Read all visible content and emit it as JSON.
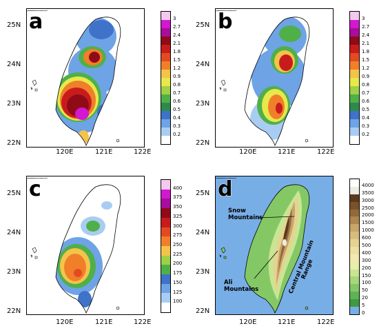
{
  "panels": [
    {
      "label": "a"
    },
    {
      "label": "b"
    },
    {
      "label": "c"
    },
    {
      "label": "d"
    }
  ],
  "latitude_ticks": [
    "25N",
    "24N",
    "23N",
    "22N"
  ],
  "longitude_ticks": [
    "120E",
    "121E",
    "122E"
  ],
  "colorbars": {
    "ratio": {
      "labels": [
        "3",
        "2.7",
        "2.4",
        "2.1",
        "1.8",
        "1.5",
        "1.2",
        "0.9",
        "0.8",
        "0.7",
        "0.6",
        "0.5",
        "0.4",
        "0.3",
        "0.2"
      ],
      "colors": [
        "#f3c9ee",
        "#d218d0",
        "#a80d9c",
        "#8f0b18",
        "#c81c1c",
        "#e34a22",
        "#f07f2a",
        "#f4c34a",
        "#e7e84a",
        "#9fd046",
        "#4fb04a",
        "#2f8a4a",
        "#3f73c9",
        "#6ea3e6",
        "#a9cdf2",
        "#ffffff"
      ]
    },
    "precip": {
      "labels": [
        "400",
        "375",
        "350",
        "325",
        "300",
        "275",
        "250",
        "225",
        "200",
        "175",
        "150",
        "125",
        "100"
      ],
      "colors": [
        "#f3c9ee",
        "#d218d0",
        "#a80d9c",
        "#8f0b18",
        "#c81c1c",
        "#e34a22",
        "#f07f2a",
        "#f4c34a",
        "#9fd046",
        "#4fb04a",
        "#3f73c9",
        "#6ea3e6",
        "#a9cdf2",
        "#ffffff"
      ]
    },
    "elevation": {
      "labels": [
        "4000",
        "3500",
        "3000",
        "2500",
        "2000",
        "1500",
        "1000",
        "600",
        "500",
        "400",
        "300",
        "200",
        "150",
        "100",
        "50",
        "20",
        "5",
        "0"
      ],
      "colors": [
        "#ffffff",
        "#efece6",
        "#5b3a1b",
        "#7a5128",
        "#93693a",
        "#ad8650",
        "#c7a56b",
        "#d8bc7e",
        "#e6d291",
        "#eee0a2",
        "#f2e9b2",
        "#e6eea9",
        "#c9e593",
        "#a7d77b",
        "#84c866",
        "#5eb454",
        "#3f9a42",
        "#78aee6"
      ]
    }
  },
  "annotations": {
    "snow_mountains": "Snow\nMountains",
    "central_mountain_range": "Central Mountain\nRange",
    "ali_mountains": "Ali\nMountains"
  },
  "colors": {
    "sea_panel_d": "#78aee6"
  }
}
